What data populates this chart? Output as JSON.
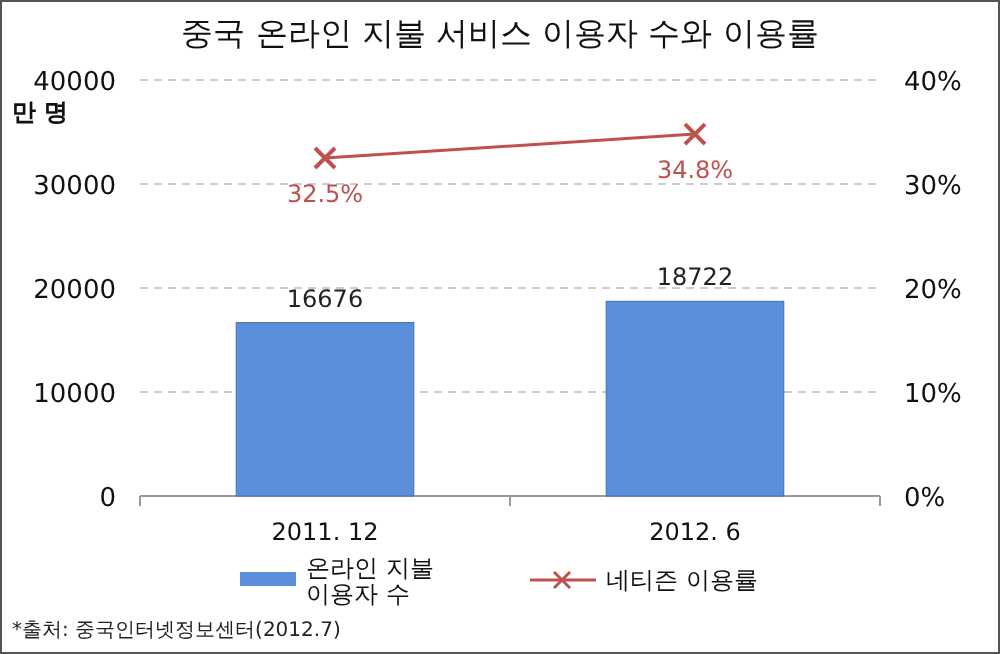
{
  "chart_data": {
    "type": "bar",
    "title": "중국 온라인 지불 서비스 이용자 수와 이용률",
    "ylabel": "만 명",
    "categories": [
      "2011. 12",
      "2012. 6"
    ],
    "series": [
      {
        "name": "온라인 지불 이용자 수",
        "color": "#5b8fd9",
        "values": [
          16676,
          18722
        ]
      },
      {
        "name": "네티즌 이용률",
        "type": "line",
        "axis": "y2",
        "color": "#c0504d",
        "marker": "cross",
        "values": [
          32.5,
          34.8
        ],
        "value_labels": [
          "32.5%",
          "34.8%"
        ]
      }
    ],
    "ylim": [
      0,
      40000
    ],
    "yticks": [
      0,
      10000,
      20000,
      30000,
      40000
    ],
    "y2lim": [
      0,
      40
    ],
    "y2ticks": [
      {
        "value": 0,
        "label": "0%"
      },
      {
        "value": 10,
        "label": "10%"
      },
      {
        "value": 20,
        "label": "20%"
      },
      {
        "value": 30,
        "label": "30%"
      },
      {
        "value": 40,
        "label": "40%"
      }
    ],
    "data_labels": true,
    "grid": "y",
    "legend": "bottom",
    "annotations": [
      "*출처: 중국인터넷정보센터(2012.7)"
    ]
  }
}
